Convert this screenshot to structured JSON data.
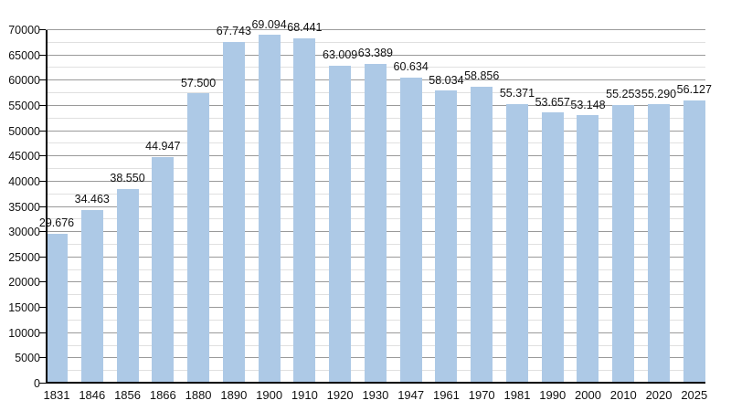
{
  "chart_data": {
    "type": "bar",
    "title": "",
    "xlabel": "",
    "ylabel": "",
    "categories": [
      "1831",
      "1846",
      "1856",
      "1866",
      "1880",
      "1890",
      "1900",
      "1910",
      "1920",
      "1930",
      "1947",
      "1961",
      "1970",
      "1981",
      "1990",
      "2000",
      "2010",
      "2020",
      "2025"
    ],
    "values": [
      29676,
      34463,
      38550,
      44947,
      57500,
      67743,
      69094,
      68441,
      63009,
      63389,
      60634,
      58034,
      58856,
      55371,
      53657,
      53148,
      55253,
      55290,
      56127
    ],
    "value_labels": [
      "29.676",
      "34.463",
      "38.550",
      "44.947",
      "57.500",
      "67.743",
      "69.094",
      "68.441",
      "63.009",
      "63.389",
      "60.634",
      "58.034",
      "58.856",
      "55.371",
      "53.657",
      "53.148",
      "55.253",
      "55.290",
      "56.127"
    ],
    "ylim": [
      0,
      70000
    ],
    "y_major_step": 5000,
    "y_minor_step": 2500,
    "y_tick_labels": [
      "0",
      "5000",
      "10000",
      "15000",
      "20000",
      "25000",
      "30000",
      "35000",
      "40000",
      "45000",
      "50000",
      "55000",
      "60000",
      "65000",
      "70000"
    ],
    "grid": "major+minor horizontal",
    "legend": "none",
    "colors": {
      "bar": "#adc9e6",
      "grid_major": "#9a9a9a",
      "grid_minor": "#e0e0e0",
      "axis": "#000000",
      "background": "#ffffff",
      "text": "#111111"
    }
  }
}
